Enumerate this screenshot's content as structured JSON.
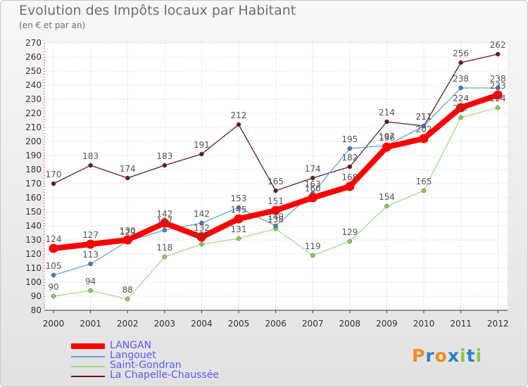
{
  "chart_data": {
    "type": "line",
    "title": "Evolution des Impôts locaux par Habitant",
    "subtitle": "(en € et par an)",
    "x": [
      "2000",
      "2001",
      "2002",
      "2003",
      "2004",
      "2005",
      "2006",
      "2007",
      "2008",
      "2009",
      "2010",
      "2011",
      "2012"
    ],
    "ylim": [
      80,
      270
    ],
    "yticks": [
      80,
      90,
      100,
      110,
      120,
      130,
      140,
      150,
      160,
      170,
      180,
      190,
      200,
      210,
      220,
      230,
      240,
      250,
      260,
      270
    ],
    "grid": true,
    "legend_position": "bottom-left",
    "series": [
      {
        "name": "La Chapelle-Chaussée",
        "color": "#6b1a1a",
        "point_color": "#6b1a1a",
        "width": "thin",
        "values": [
          170,
          183,
          174,
          183,
          191,
          212,
          165,
          174,
          182,
          214,
          211,
          256,
          262
        ]
      },
      {
        "name": "Saint-Gondran",
        "color": "#a6d98a",
        "point_color": "#8ccd5a",
        "width": "thin",
        "values": [
          90,
          94,
          88,
          118,
          127,
          131,
          138,
          119,
          129,
          154,
          165,
          217,
          224
        ]
      },
      {
        "name": "Langouet",
        "color": "#6aa0d6",
        "point_color": "#3d7fc8",
        "width": "thin",
        "values": [
          105,
          113,
          129,
          137,
          142,
          153,
          140,
          163,
          195,
          197,
          211,
          238,
          238
        ]
      },
      {
        "name": "LANGAN",
        "color": "#ff0000",
        "point_color": "#ff0000",
        "width": "thick",
        "values": [
          124,
          127,
          130,
          142,
          132,
          145,
          151,
          160,
          168,
          196,
          202,
          224,
          233
        ]
      }
    ],
    "data_labels": [
      {
        "series": "La Chapelle-Chaussée",
        "labels": [
          "170",
          "183",
          "174",
          "183",
          "191",
          "212",
          "165",
          "174",
          "182",
          "214",
          "211",
          "256",
          "262"
        ]
      },
      {
        "series": "Saint-Gondran",
        "labels": [
          "90",
          "94",
          "88",
          "118",
          "127",
          "131",
          "138",
          "119",
          "129",
          "154",
          "165",
          "217",
          "224"
        ]
      },
      {
        "series": "Langouet",
        "labels": [
          "105",
          "113",
          "129",
          "137",
          "142",
          "153",
          "140",
          "163",
          "195",
          "197",
          "211",
          "238",
          "238"
        ]
      },
      {
        "series": "LANGAN",
        "labels": [
          "124",
          "127",
          "130",
          "142",
          "132",
          "145",
          "151",
          "160",
          "168",
          "196",
          "202",
          "224",
          "233"
        ]
      }
    ]
  },
  "legend": {
    "items": [
      {
        "label": "LANGAN",
        "color": "#ff0000"
      },
      {
        "label": "Langouet",
        "color": "#6aa0d6"
      },
      {
        "label": "Saint-Gondran",
        "color": "#a6d98a"
      },
      {
        "label": "La Chapelle-Chaussée",
        "color": "#6b1a1a"
      }
    ]
  },
  "logo": {
    "text": "Proxiti",
    "colors": [
      "#f28c1e",
      "#2e7fd0",
      "#f28c1e",
      "#2e7fd0",
      "#8cc63f",
      "#2e7fd0",
      "#8cc63f"
    ]
  }
}
